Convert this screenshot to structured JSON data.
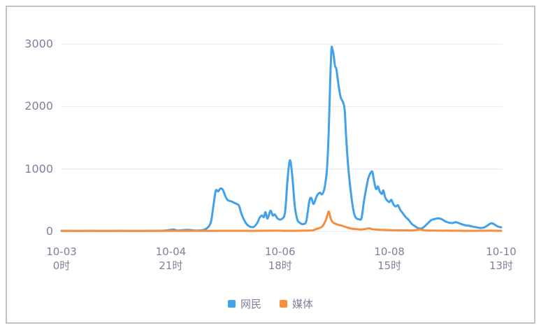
{
  "chart_data": {
    "type": "line",
    "title": "",
    "xlabel": "",
    "ylabel": "",
    "grid": true,
    "legend_position": "bottom",
    "x_unit": "hours since 10-03 00:00",
    "x_range": [
      0,
      181
    ],
    "ylim": [
      0,
      3000
    ],
    "y_ticks": [
      0,
      1000,
      2000,
      3000
    ],
    "y_tick_labels": [
      "0",
      "1000",
      "2000",
      "3000"
    ],
    "x_ticks": [
      {
        "hour": 0,
        "label_line1": "10-03",
        "label_line2": "0时"
      },
      {
        "hour": 45,
        "label_line1": "10-04",
        "label_line2": "21时"
      },
      {
        "hour": 90,
        "label_line1": "10-06",
        "label_line2": "18时"
      },
      {
        "hour": 135,
        "label_line1": "10-08",
        "label_line2": "15时"
      },
      {
        "hour": 181,
        "label_line1": "10-10",
        "label_line2": "13时"
      }
    ],
    "series": [
      {
        "name": "网民",
        "color": "#42a1e8",
        "points": [
          [
            0,
            10
          ],
          [
            6,
            8
          ],
          [
            12,
            10
          ],
          [
            18,
            8
          ],
          [
            24,
            10
          ],
          [
            30,
            8
          ],
          [
            36,
            10
          ],
          [
            42,
            12
          ],
          [
            46,
            30
          ],
          [
            48,
            15
          ],
          [
            52,
            25
          ],
          [
            55,
            14
          ],
          [
            58,
            20
          ],
          [
            60,
            55
          ],
          [
            61.5,
            150
          ],
          [
            62.5,
            400
          ],
          [
            63.5,
            650
          ],
          [
            64.5,
            640
          ],
          [
            65.5,
            690
          ],
          [
            66.5,
            660
          ],
          [
            67.5,
            560
          ],
          [
            68.5,
            500
          ],
          [
            70,
            480
          ],
          [
            71.5,
            450
          ],
          [
            73,
            415
          ],
          [
            74,
            290
          ],
          [
            75.5,
            160
          ],
          [
            77,
            90
          ],
          [
            79,
            70
          ],
          [
            80.5,
            130
          ],
          [
            81.5,
            215
          ],
          [
            82.5,
            255
          ],
          [
            83.3,
            230
          ],
          [
            84,
            310
          ],
          [
            84.8,
            205
          ],
          [
            86,
            330
          ],
          [
            87,
            255
          ],
          [
            87.8,
            272
          ],
          [
            89,
            205
          ],
          [
            90.5,
            195
          ],
          [
            92,
            300
          ],
          [
            93,
            800
          ],
          [
            94,
            1140
          ],
          [
            95,
            890
          ],
          [
            96,
            420
          ],
          [
            97,
            200
          ],
          [
            98,
            140
          ],
          [
            99.5,
            118
          ],
          [
            100.8,
            170
          ],
          [
            102,
            480
          ],
          [
            102.8,
            535
          ],
          [
            103.8,
            440
          ],
          [
            105,
            560
          ],
          [
            106.3,
            620
          ],
          [
            107.3,
            595
          ],
          [
            108.3,
            700
          ],
          [
            109.3,
            1000
          ],
          [
            110,
            1600
          ],
          [
            110.5,
            2250
          ],
          [
            111.1,
            2900
          ],
          [
            111.5,
            2920
          ],
          [
            112,
            2830
          ],
          [
            112.6,
            2650
          ],
          [
            113.2,
            2590
          ],
          [
            114.2,
            2300
          ],
          [
            115,
            2140
          ],
          [
            116,
            2060
          ],
          [
            116.6,
            1930
          ],
          [
            117.2,
            1500
          ],
          [
            118,
            1050
          ],
          [
            118.9,
            700
          ],
          [
            119.7,
            450
          ],
          [
            120.5,
            280
          ],
          [
            121.3,
            215
          ],
          [
            122.4,
            195
          ],
          [
            123.5,
            215
          ],
          [
            124.5,
            480
          ],
          [
            125.5,
            700
          ],
          [
            126.3,
            850
          ],
          [
            127.3,
            940
          ],
          [
            128,
            950
          ],
          [
            128.7,
            800
          ],
          [
            129.5,
            680
          ],
          [
            130.3,
            720
          ],
          [
            131,
            640
          ],
          [
            131.9,
            600
          ],
          [
            132.5,
            655
          ],
          [
            133.3,
            540
          ],
          [
            134.2,
            490
          ],
          [
            135,
            470
          ],
          [
            135.8,
            505
          ],
          [
            136.7,
            430
          ],
          [
            137.6,
            400
          ],
          [
            138.5,
            420
          ],
          [
            139.4,
            350
          ],
          [
            140.5,
            290
          ],
          [
            141.7,
            230
          ],
          [
            143,
            180
          ],
          [
            144.2,
            120
          ],
          [
            145.3,
            90
          ],
          [
            146.7,
            55
          ],
          [
            148,
            45
          ],
          [
            149.2,
            70
          ],
          [
            150.8,
            130
          ],
          [
            152.2,
            180
          ],
          [
            153.8,
            200
          ],
          [
            155.2,
            210
          ],
          [
            156.6,
            195
          ],
          [
            158,
            160
          ],
          [
            159.5,
            140
          ],
          [
            161,
            135
          ],
          [
            162.3,
            148
          ],
          [
            163.8,
            130
          ],
          [
            165.2,
            110
          ],
          [
            166.6,
            95
          ],
          [
            168,
            90
          ],
          [
            169.5,
            75
          ],
          [
            171,
            65
          ],
          [
            172.5,
            55
          ],
          [
            173.8,
            62
          ],
          [
            175.2,
            90
          ],
          [
            176.4,
            122
          ],
          [
            177.3,
            130
          ],
          [
            178.4,
            108
          ],
          [
            179.6,
            80
          ],
          [
            181,
            65
          ]
        ]
      },
      {
        "name": "媒体",
        "color": "#f78e3d",
        "points": [
          [
            0,
            8
          ],
          [
            12,
            8
          ],
          [
            24,
            9
          ],
          [
            36,
            8
          ],
          [
            48,
            9
          ],
          [
            60,
            8
          ],
          [
            70,
            10
          ],
          [
            80,
            10
          ],
          [
            88,
            12
          ],
          [
            92,
            10
          ],
          [
            96,
            10
          ],
          [
            100,
            12
          ],
          [
            102,
            14
          ],
          [
            103.6,
            18
          ],
          [
            105,
            40
          ],
          [
            106.6,
            60
          ],
          [
            107.6,
            90
          ],
          [
            108.8,
            180
          ],
          [
            109.6,
            280
          ],
          [
            110.1,
            315
          ],
          [
            110.8,
            210
          ],
          [
            111.6,
            150
          ],
          [
            112.8,
            122
          ],
          [
            114,
            105
          ],
          [
            115.1,
            95
          ],
          [
            116.3,
            80
          ],
          [
            117.7,
            62
          ],
          [
            119.4,
            45
          ],
          [
            121.4,
            36
          ],
          [
            123.5,
            30
          ],
          [
            125.5,
            42
          ],
          [
            126.6,
            50
          ],
          [
            127.5,
            40
          ],
          [
            129,
            30
          ],
          [
            131.5,
            25
          ],
          [
            134,
            22
          ],
          [
            136,
            20
          ],
          [
            139,
            18
          ],
          [
            141.6,
            18
          ],
          [
            144,
            16
          ],
          [
            146.8,
            25
          ],
          [
            147.6,
            34
          ],
          [
            148.8,
            20
          ],
          [
            151,
            15
          ],
          [
            153,
            14
          ],
          [
            156,
            12
          ],
          [
            159,
            12
          ],
          [
            162,
            11
          ],
          [
            165,
            10
          ],
          [
            168,
            10
          ],
          [
            171,
            10
          ],
          [
            174,
            11
          ],
          [
            176,
            12
          ],
          [
            178,
            11
          ],
          [
            181,
            10
          ]
        ]
      }
    ],
    "legend": [
      {
        "label": "网民",
        "color": "#42a1e8"
      },
      {
        "label": "媒体",
        "color": "#f78e3d"
      }
    ]
  },
  "colors": {
    "grid_line": "#e6eaf4",
    "axis_text": "#7d829b",
    "frame_border": "#c1c1c6",
    "background": "#ffffff"
  }
}
